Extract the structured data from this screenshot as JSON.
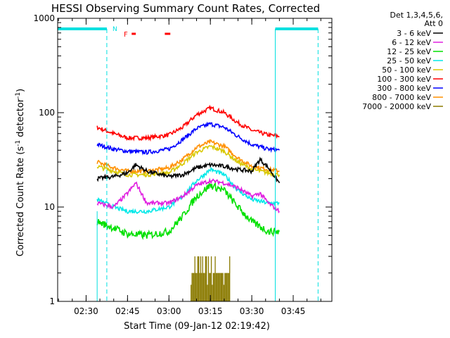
{
  "chart_data": {
    "type": "line",
    "title": "HESSI Observing Summary Count Rates, Corrected",
    "xlabel": "Start Time (09-Jan-12 02:19:42)",
    "ylabel": "Corrected Count Rate (s⁻¹ detector⁻¹)",
    "ylabel_main": "Corrected Count Rate (s",
    "ylabel_sup1": "-1",
    "ylabel_mid": " detector",
    "ylabel_sup2": "-1",
    "ylabel_end": ")",
    "yscale": "log",
    "ylim": [
      1,
      1000
    ],
    "xlim": [
      "02:19:42",
      "03:59:00"
    ],
    "x_ticks": [
      "02:30",
      "02:45",
      "03:00",
      "03:15",
      "03:30",
      "03:45"
    ],
    "y_ticks": [
      "1",
      "10",
      "100",
      "1000"
    ],
    "grid": false,
    "legend": {
      "placement": "right",
      "header1": "Det 1,3,4,5,6,",
      "header2": "Att 0",
      "entries": [
        {
          "label": "3 - 6 keV",
          "color": "#000000"
        },
        {
          "label": "6 - 12 keV",
          "color": "#e020e0"
        },
        {
          "label": "12 - 25 keV",
          "color": "#00e000"
        },
        {
          "label": "25 - 50 keV",
          "color": "#00e8e8"
        },
        {
          "label": "50 - 100 keV",
          "color": "#d8c800"
        },
        {
          "label": "100 - 300 keV",
          "color": "#ff0000"
        },
        {
          "label": "300 - 800 keV",
          "color": "#0000ff"
        },
        {
          "label": "800 - 7000 keV",
          "color": "#ff9000"
        },
        {
          "label": "7000 - 20000 keV",
          "color": "#8a7a00"
        }
      ]
    },
    "annotations": {
      "night_label": "N",
      "flare_label": "F"
    },
    "series": [
      {
        "name": "100 - 300 keV",
        "color": "#ff0000",
        "points": [
          [
            "02:34",
            70
          ],
          [
            "02:40",
            60
          ],
          [
            "02:45",
            54
          ],
          [
            "02:52",
            54
          ],
          [
            "03:00",
            58
          ],
          [
            "03:05",
            70
          ],
          [
            "03:10",
            95
          ],
          [
            "03:15",
            112
          ],
          [
            "03:20",
            100
          ],
          [
            "03:25",
            78
          ],
          [
            "03:30",
            65
          ],
          [
            "03:36",
            58
          ],
          [
            "03:40",
            56
          ]
        ]
      },
      {
        "name": "300 - 800 keV",
        "color": "#0000ff",
        "points": [
          [
            "02:34",
            46
          ],
          [
            "02:40",
            41
          ],
          [
            "02:45",
            39
          ],
          [
            "02:52",
            38
          ],
          [
            "03:00",
            41
          ],
          [
            "03:05",
            52
          ],
          [
            "03:10",
            68
          ],
          [
            "03:15",
            76
          ],
          [
            "03:20",
            70
          ],
          [
            "03:25",
            56
          ],
          [
            "03:30",
            46
          ],
          [
            "03:36",
            41
          ],
          [
            "03:40",
            40
          ]
        ]
      },
      {
        "name": "800 - 7000 keV",
        "color": "#ff9000",
        "points": [
          [
            "02:34",
            30
          ],
          [
            "02:40",
            26
          ],
          [
            "02:45",
            24
          ],
          [
            "02:52",
            24
          ],
          [
            "03:00",
            26
          ],
          [
            "03:05",
            32
          ],
          [
            "03:10",
            43
          ],
          [
            "03:15",
            49
          ],
          [
            "03:20",
            44
          ],
          [
            "03:25",
            33
          ],
          [
            "03:30",
            27
          ],
          [
            "03:36",
            25
          ],
          [
            "03:40",
            24
          ]
        ]
      },
      {
        "name": "50 - 100 keV",
        "color": "#d8c800",
        "points": [
          [
            "02:34",
            27
          ],
          [
            "02:40",
            24
          ],
          [
            "02:45",
            22
          ],
          [
            "02:52",
            22
          ],
          [
            "03:00",
            23
          ],
          [
            "03:05",
            29
          ],
          [
            "03:10",
            38
          ],
          [
            "03:15",
            44
          ],
          [
            "03:20",
            39
          ],
          [
            "03:25",
            30
          ],
          [
            "03:30",
            25
          ],
          [
            "03:36",
            23
          ],
          [
            "03:40",
            22
          ]
        ]
      },
      {
        "name": "3 - 6 keV",
        "color": "#000000",
        "points": [
          [
            "02:34",
            20
          ],
          [
            "02:40",
            21
          ],
          [
            "02:45",
            23
          ],
          [
            "02:48",
            28
          ],
          [
            "02:52",
            24
          ],
          [
            "03:00",
            21
          ],
          [
            "03:05",
            22
          ],
          [
            "03:10",
            26
          ],
          [
            "03:15",
            28
          ],
          [
            "03:20",
            27
          ],
          [
            "03:25",
            25
          ],
          [
            "03:30",
            24
          ],
          [
            "03:33",
            32
          ],
          [
            "03:36",
            26
          ],
          [
            "03:40",
            18
          ]
        ]
      },
      {
        "name": "25 - 50 keV",
        "color": "#00e8e8",
        "points": [
          [
            "02:34",
            12
          ],
          [
            "02:40",
            10
          ],
          [
            "02:45",
            9
          ],
          [
            "02:52",
            9
          ],
          [
            "03:00",
            10
          ],
          [
            "03:05",
            13
          ],
          [
            "03:10",
            19
          ],
          [
            "03:15",
            25
          ],
          [
            "03:20",
            22
          ],
          [
            "03:25",
            15
          ],
          [
            "03:30",
            12
          ],
          [
            "03:36",
            11
          ],
          [
            "03:40",
            11
          ]
        ]
      },
      {
        "name": "6 - 12 keV",
        "color": "#e020e0",
        "points": [
          [
            "02:34",
            11
          ],
          [
            "02:40",
            10
          ],
          [
            "02:45",
            14
          ],
          [
            "02:48",
            18
          ],
          [
            "02:52",
            11
          ],
          [
            "03:00",
            11
          ],
          [
            "03:05",
            13
          ],
          [
            "03:10",
            17
          ],
          [
            "03:15",
            19
          ],
          [
            "03:20",
            18
          ],
          [
            "03:25",
            16
          ],
          [
            "03:30",
            13
          ],
          [
            "03:33",
            14
          ],
          [
            "03:36",
            11
          ],
          [
            "03:40",
            9
          ]
        ]
      },
      {
        "name": "12 - 25 keV",
        "color": "#00e000",
        "points": [
          [
            "02:34",
            7
          ],
          [
            "02:40",
            6
          ],
          [
            "02:45",
            5.2
          ],
          [
            "02:52",
            5
          ],
          [
            "03:00",
            5.5
          ],
          [
            "03:05",
            8
          ],
          [
            "03:10",
            13
          ],
          [
            "03:15",
            17
          ],
          [
            "03:20",
            15
          ],
          [
            "03:25",
            10
          ],
          [
            "03:30",
            7
          ],
          [
            "03:36",
            5.5
          ],
          [
            "03:40",
            5.5
          ]
        ]
      }
    ]
  }
}
